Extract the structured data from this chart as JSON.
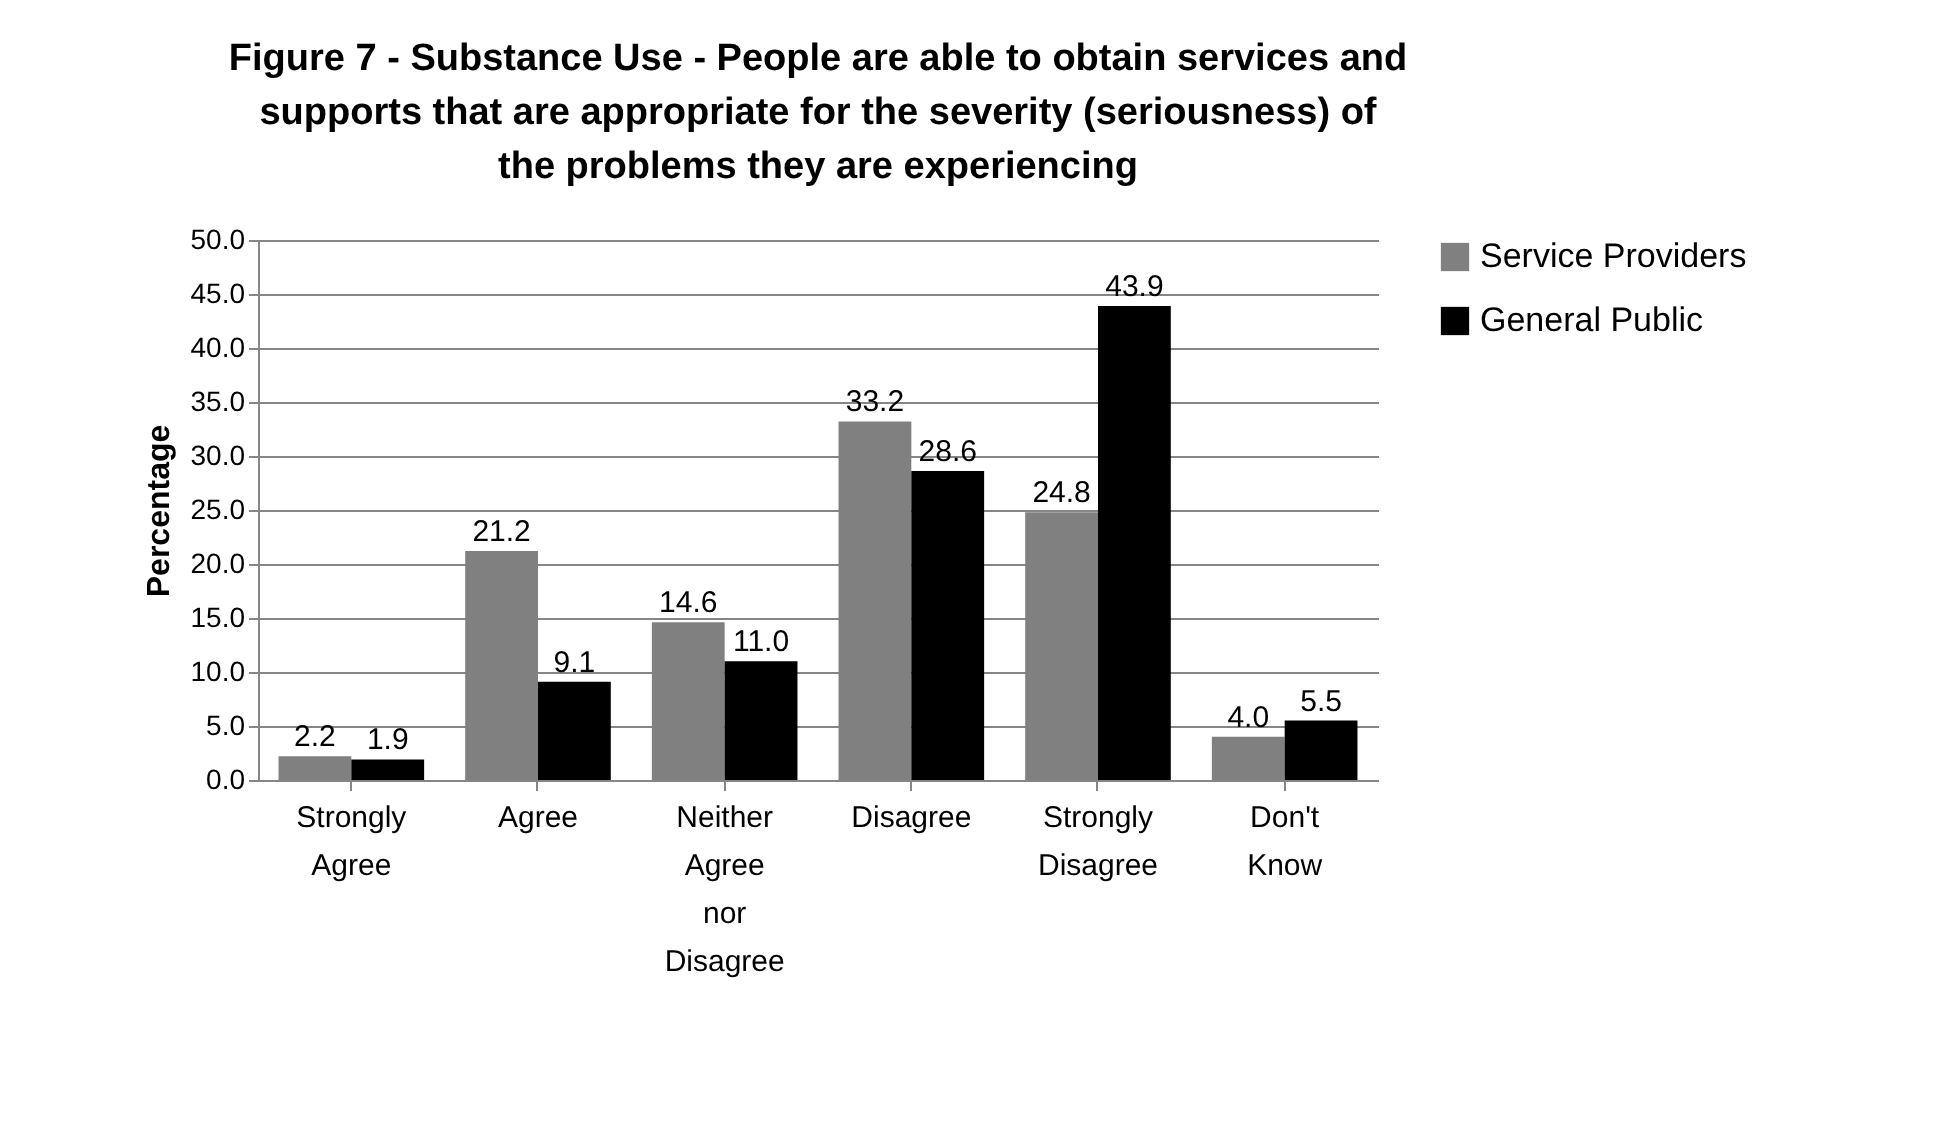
{
  "chart_data": {
    "type": "bar",
    "title": "Figure 7 - Substance Use - People are able to obtain services and supports that are appropriate for the severity (seriousness) of the problems they are experiencing",
    "ylabel": "Percentage",
    "categories": [
      "Strongly Agree",
      "Agree",
      "Neither Agree nor Disagree",
      "Disagree",
      "Strongly Disagree",
      "Don't Know"
    ],
    "series": [
      {
        "name": "Service Providers",
        "color": "#808080",
        "values": [
          2.2,
          21.2,
          14.6,
          33.2,
          24.8,
          4.0
        ],
        "value_labels": [
          "2.2",
          "21.2",
          "14.6",
          "33.2",
          "24.8",
          "4.0"
        ]
      },
      {
        "name": "General Public",
        "color": "#000000",
        "values": [
          1.9,
          9.1,
          11.0,
          28.6,
          43.9,
          5.5
        ],
        "value_labels": [
          "1.9",
          "9.1",
          "11.0",
          "28.6",
          "43.9",
          "5.5"
        ]
      }
    ],
    "ylim": [
      0,
      50
    ],
    "yticks": [
      {
        "value": 0,
        "label": "0.0"
      },
      {
        "value": 5,
        "label": "5.0"
      },
      {
        "value": 10,
        "label": "10.0"
      },
      {
        "value": 15,
        "label": "15.0"
      },
      {
        "value": 20,
        "label": "20.0"
      },
      {
        "value": 25,
        "label": "25.0"
      },
      {
        "value": 30,
        "label": "30.0"
      },
      {
        "value": 35,
        "label": "35.0"
      },
      {
        "value": 40,
        "label": "40.0"
      },
      {
        "value": 45,
        "label": "45.0"
      },
      {
        "value": 50,
        "label": "50.0"
      }
    ],
    "grid": "y",
    "legend": "right"
  }
}
